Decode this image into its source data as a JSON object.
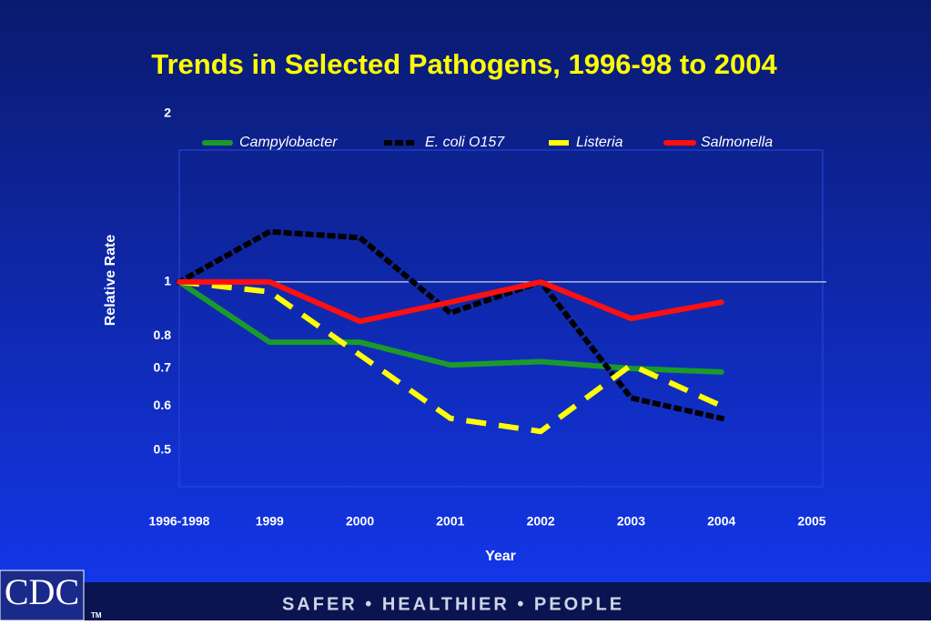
{
  "chart_data": {
    "type": "line",
    "title": "Trends in Selected Pathogens, 1996-98 to 2004",
    "x_label": "Year",
    "y_label": "Relative Rate",
    "categories": [
      "1996-1998",
      "1999",
      "2000",
      "2001",
      "2002",
      "2003",
      "2004",
      "2005"
    ],
    "series": [
      {
        "name": "Campylobacter",
        "color": "#1a9a2a",
        "style": "solid",
        "values": [
          1,
          0.78,
          0.78,
          0.71,
          0.72,
          0.7,
          0.69,
          null
        ]
      },
      {
        "name": "E. coli O157",
        "color": "#000000",
        "style": "dotted",
        "values": [
          1,
          1.23,
          1.2,
          0.88,
          1.0,
          0.62,
          0.57,
          null
        ]
      },
      {
        "name": "Listeria",
        "color": "#ffff00",
        "style": "dashed",
        "values": [
          1,
          0.96,
          0.74,
          0.57,
          0.54,
          0.71,
          0.6,
          null
        ]
      },
      {
        "name": "Salmonella",
        "color": "#ff1010",
        "style": "solid",
        "values": [
          1,
          1,
          0.85,
          0.92,
          1,
          0.86,
          0.92,
          null
        ]
      }
    ],
    "log_scale": true,
    "ylim": [
      0.43,
      2
    ],
    "yticks": [
      2,
      1,
      0.8,
      0.7,
      0.6,
      0.5
    ],
    "reference_line": 1,
    "legend": "top"
  },
  "footer": {
    "logo": "CDC",
    "trademark": "TM",
    "slogan": "SAFER • HEALTHIER • PEOPLE"
  }
}
